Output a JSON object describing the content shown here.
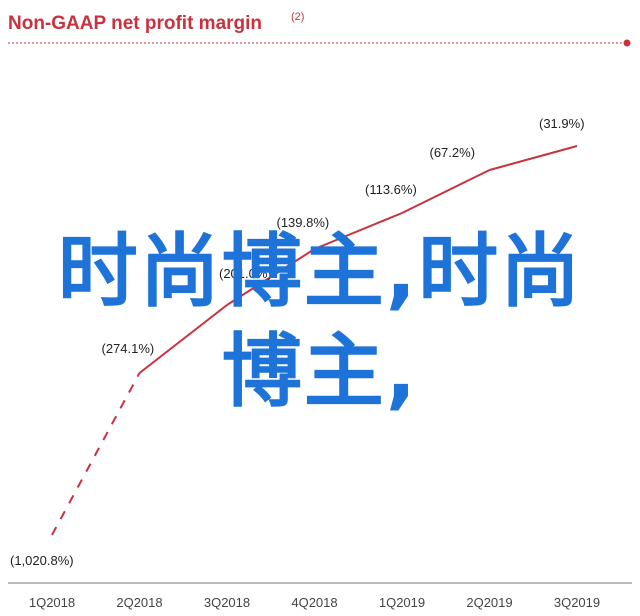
{
  "title": "Non-GAAP net profit margin",
  "title_note": "(2)",
  "overlay_text": "时尚博主,时尚博主,",
  "colors": {
    "title": "#c8323e",
    "line": "#c8323e",
    "divider": "#c8323e",
    "overlay": "#1e73d8",
    "axis": "#777777"
  },
  "chart_data": {
    "type": "line",
    "title": "Non-GAAP net profit margin",
    "xlabel": "",
    "ylabel": "",
    "categories": [
      "1Q2018",
      "2Q2018",
      "3Q2018",
      "4Q2018",
      "1Q2019",
      "2Q2019",
      "3Q2019"
    ],
    "series": [
      {
        "values": [
          -1020.8,
          -274.1,
          -201.0,
          -139.8,
          -113.6,
          -67.2,
          -31.9
        ],
        "labels": [
          "(1,020.8%)",
          "(274.1%)",
          "(201.0%)",
          "(139.8%)",
          "(113.6%)",
          "(67.2%)",
          "(31.9%)"
        ],
        "dashed_segments": [
          0
        ]
      }
    ],
    "ylim": [
      -1100,
      0
    ],
    "grid": false,
    "legend": "none"
  }
}
